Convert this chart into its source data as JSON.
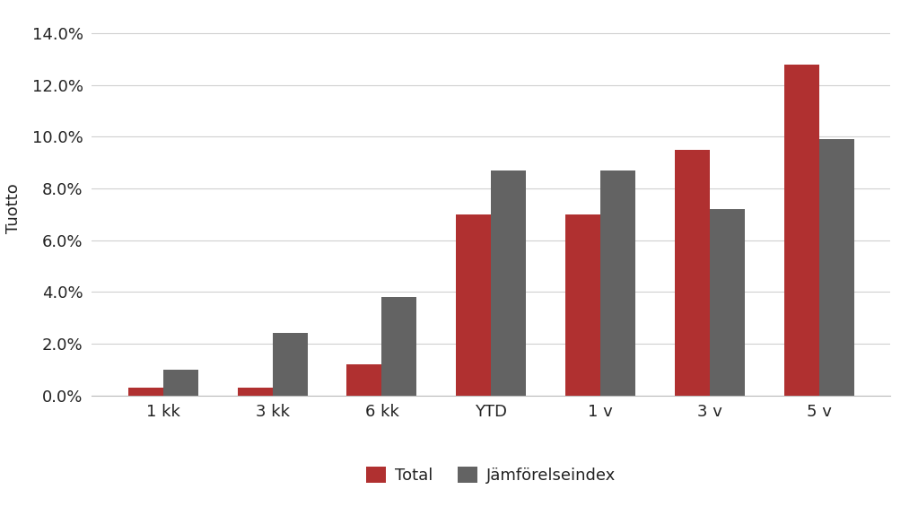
{
  "categories": [
    "1 kk",
    "3 kk",
    "6 kk",
    "YTD",
    "1 v",
    "3 v",
    "5 v"
  ],
  "total": [
    0.003,
    0.003,
    0.012,
    0.07,
    0.07,
    0.095,
    0.128
  ],
  "index": [
    0.01,
    0.024,
    0.038,
    0.087,
    0.087,
    0.072,
    0.099
  ],
  "total_color": "#b03030",
  "index_color": "#636363",
  "ylabel": "Tuotto",
  "ylim": [
    0.0,
    0.145
  ],
  "yticks": [
    0.0,
    0.02,
    0.04,
    0.06,
    0.08,
    0.1,
    0.12,
    0.14
  ],
  "legend_labels": [
    "Total",
    "Jämförelseindex"
  ],
  "background_color": "#ffffff",
  "bar_width": 0.32,
  "grid_color": "#d0d0d0",
  "axis_fontsize": 13,
  "tick_fontsize": 13,
  "legend_fontsize": 13,
  "text_color": "#222222"
}
